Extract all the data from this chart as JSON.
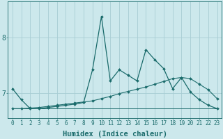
{
  "xlabel": "Humidex (Indice chaleur)",
  "background_color": "#cce8ec",
  "line_color": "#1a6b6b",
  "grid_color": "#a8cdd4",
  "x_values": [
    0,
    1,
    2,
    3,
    4,
    5,
    6,
    7,
    8,
    9,
    10,
    11,
    12,
    13,
    14,
    15,
    16,
    17,
    18,
    19,
    20,
    21,
    22,
    23
  ],
  "line1": [
    7.08,
    6.88,
    6.72,
    6.72,
    6.74,
    6.76,
    6.78,
    6.8,
    6.83,
    7.42,
    8.38,
    7.22,
    7.42,
    7.32,
    7.22,
    7.78,
    7.6,
    7.44,
    7.08,
    7.28,
    7.02,
    6.88,
    6.78,
    6.72
  ],
  "line2": [
    6.72,
    6.72,
    6.73,
    6.74,
    6.76,
    6.78,
    6.8,
    6.82,
    6.84,
    6.86,
    6.9,
    6.94,
    6.99,
    7.03,
    7.07,
    7.11,
    7.16,
    7.21,
    7.26,
    7.28,
    7.26,
    7.16,
    7.06,
    6.9
  ],
  "line3": [
    6.72,
    6.72,
    6.72,
    6.72,
    6.72,
    6.72,
    6.72,
    6.72,
    6.72,
    6.72,
    6.72,
    6.72,
    6.72,
    6.72,
    6.72,
    6.72,
    6.72,
    6.72,
    6.72,
    6.72,
    6.72,
    6.72,
    6.72,
    6.72
  ],
  "yticks": [
    7,
    8
  ],
  "ylim": [
    6.55,
    8.65
  ],
  "xlim": [
    -0.5,
    23.5
  ],
  "xtick_fontsize": 5.5,
  "ytick_fontsize": 7,
  "xlabel_fontsize": 7.5,
  "markersize": 2.0
}
